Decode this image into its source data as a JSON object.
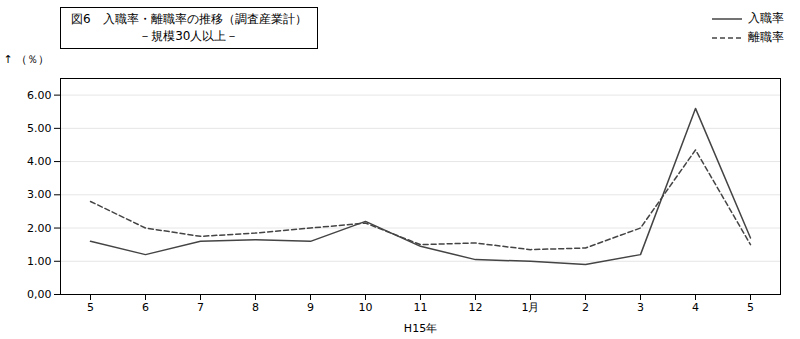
{
  "chart_data": {
    "type": "line",
    "title": "図6　入職率・離職率の推移（調査産業計）",
    "subtitle": "－規模30人以上－",
    "x_label": "H15年",
    "y_label": "（％）",
    "categories": [
      "5",
      "6",
      "7",
      "8",
      "9",
      "10",
      "11",
      "12",
      "1月",
      "2",
      "3",
      "4",
      "5"
    ],
    "series": [
      {
        "name": "入職率",
        "color": "#444444",
        "line_style": "solid",
        "values": [
          1.6,
          1.2,
          1.6,
          1.65,
          1.6,
          2.2,
          1.45,
          1.05,
          1.0,
          0.9,
          1.2,
          5.6,
          1.7
        ]
      },
      {
        "name": "離職率",
        "color": "#444444",
        "line_style": "dashed",
        "values": [
          2.8,
          2.0,
          1.75,
          1.85,
          2.0,
          2.15,
          1.5,
          1.55,
          1.35,
          1.4,
          2.0,
          4.35,
          1.5
        ]
      }
    ],
    "ylim": [
      0.0,
      6.5
    ],
    "yticks": [
      {
        "value": 0.0,
        "label": "0,00"
      },
      {
        "value": 1.0,
        "label": "1.00"
      },
      {
        "value": 2.0,
        "label": "2.00"
      },
      {
        "value": 3.0,
        "label": "3.00"
      },
      {
        "value": 4.0,
        "label": "4.00"
      },
      {
        "value": 5.0,
        "label": "5.00"
      },
      {
        "value": 6.0,
        "label": "6.00"
      }
    ],
    "grid": true,
    "legend": "upper right"
  }
}
